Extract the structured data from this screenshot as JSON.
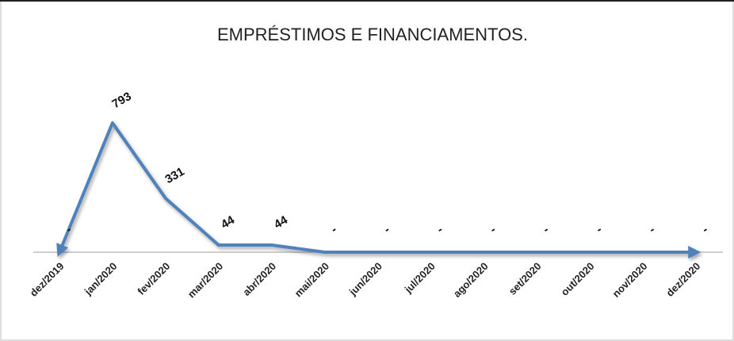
{
  "chart_data": {
    "type": "line",
    "title": "EMPRÉSTIMOS E FINANCIAMENTOS.",
    "categories": [
      "dez/2019",
      "jan/2020",
      "fev/2020",
      "mar/2020",
      "abr/2020",
      "mai/2020",
      "jun/2020",
      "jul/2020",
      "ago/2020",
      "set/2020",
      "out/2020",
      "nov/2020",
      "dez/2020"
    ],
    "values": [
      0,
      793,
      331,
      44,
      44,
      0,
      0,
      0,
      0,
      0,
      0,
      0,
      0
    ],
    "value_labels": [
      "-",
      "793",
      "331",
      "44",
      "44",
      "-",
      "-",
      "-",
      "-",
      "-",
      "-",
      "-",
      "-"
    ],
    "color": "#4f81bd"
  }
}
